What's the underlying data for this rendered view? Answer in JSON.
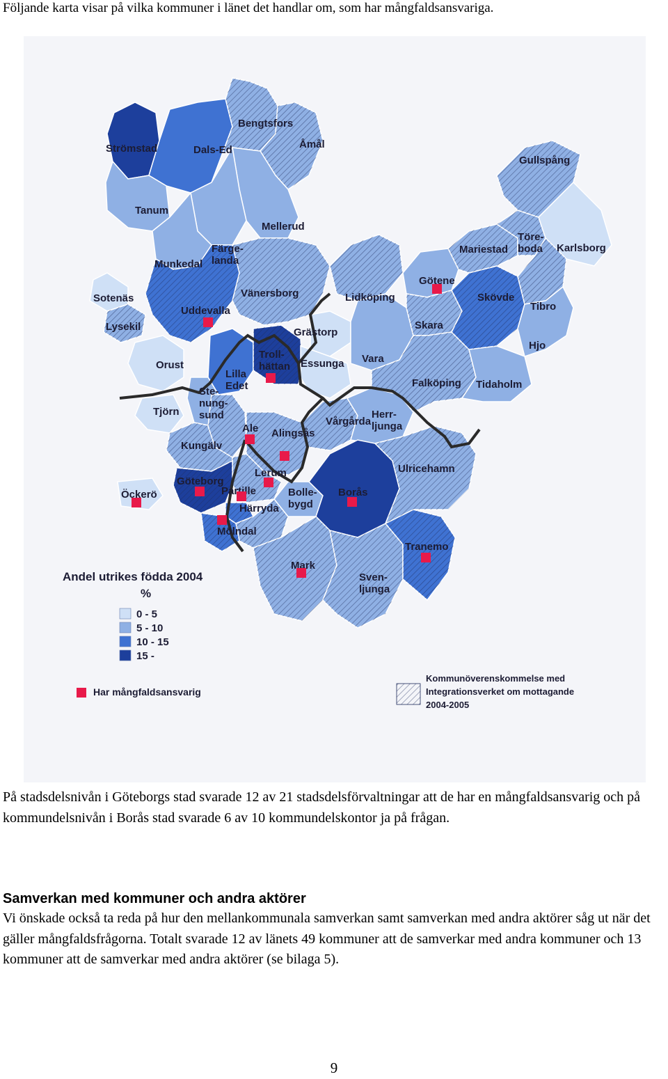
{
  "intro_text": "Följande karta visar på vilka kommuner i länet det handlar om, som har mångfaldsansvariga.",
  "map": {
    "municipalities": [
      {
        "name": "Strömstad",
        "band": "15 -",
        "marker": false,
        "agreement": false
      },
      {
        "name": "Dals-Ed",
        "band": "10 - 15",
        "marker": false,
        "agreement": false
      },
      {
        "name": "Bengtsfors",
        "band": "5 - 10",
        "marker": false,
        "agreement": true
      },
      {
        "name": "Åmål",
        "band": "5 - 10",
        "marker": false,
        "agreement": true
      },
      {
        "name": "Tanum",
        "band": "5 - 10",
        "marker": false,
        "agreement": false
      },
      {
        "name": "Mellerud",
        "band": "5 - 10",
        "marker": false,
        "agreement": false
      },
      {
        "name": "Färge-landa",
        "band": "5 - 10",
        "marker": false,
        "agreement": false
      },
      {
        "name": "Munkedal",
        "band": "5 - 10",
        "marker": false,
        "agreement": false
      },
      {
        "name": "Sotenäs",
        "band": "0 - 5",
        "marker": false,
        "agreement": false
      },
      {
        "name": "Lysekil",
        "band": "5 - 10",
        "marker": false,
        "agreement": true
      },
      {
        "name": "Uddevalla",
        "band": "10 - 15",
        "marker": true,
        "agreement": true
      },
      {
        "name": "Vänersborg",
        "band": "5 - 10",
        "marker": false,
        "agreement": true
      },
      {
        "name": "Orust",
        "band": "0 - 5",
        "marker": false,
        "agreement": false
      },
      {
        "name": "Lilla Edet",
        "band": "10 - 15",
        "marker": false,
        "agreement": false
      },
      {
        "name": "Troll-hättan",
        "band": "15 -",
        "marker": true,
        "agreement": true
      },
      {
        "name": "Grästorp",
        "band": "0 - 5",
        "marker": false,
        "agreement": false
      },
      {
        "name": "Essunga",
        "band": "0 - 5",
        "marker": false,
        "agreement": false
      },
      {
        "name": "Ste-nung-sund",
        "band": "5 - 10",
        "marker": false,
        "agreement": false
      },
      {
        "name": "Tjörn",
        "band": "0 - 5",
        "marker": false,
        "agreement": false
      },
      {
        "name": "Kungälv",
        "band": "5 - 10",
        "marker": false,
        "agreement": true
      },
      {
        "name": "Ale",
        "band": "5 - 10",
        "marker": true,
        "agreement": true
      },
      {
        "name": "Alingsås",
        "band": "5 - 10",
        "marker": true,
        "agreement": true
      },
      {
        "name": "Vårgårda",
        "band": "5 - 10",
        "marker": false,
        "agreement": true
      },
      {
        "name": "Herr-ljunga",
        "band": "5 - 10",
        "marker": false,
        "agreement": false
      },
      {
        "name": "Lerum",
        "band": "5 - 10",
        "marker": true,
        "agreement": true
      },
      {
        "name": "Göteborg",
        "band": "15 -",
        "marker": true,
        "agreement": true
      },
      {
        "name": "Partille",
        "band": "10 - 15",
        "marker": true,
        "agreement": true
      },
      {
        "name": "Härryda",
        "band": "5 - 10",
        "marker": false,
        "agreement": true
      },
      {
        "name": "Bolle-bygd",
        "band": "5 - 10",
        "marker": false,
        "agreement": false
      },
      {
        "name": "Borås",
        "band": "15 -",
        "marker": true,
        "agreement": false
      },
      {
        "name": "Öckerö",
        "band": "0 - 5",
        "marker": true,
        "agreement": false
      },
      {
        "name": "Mölndal",
        "band": "10 - 15",
        "marker": true,
        "agreement": true
      },
      {
        "name": "Mark",
        "band": "5 - 10",
        "marker": true,
        "agreement": true
      },
      {
        "name": "Sven-ljunga",
        "band": "5 - 10",
        "marker": false,
        "agreement": true
      },
      {
        "name": "Tranemo",
        "band": "10 - 15",
        "marker": true,
        "agreement": true
      },
      {
        "name": "Ulricehamn",
        "band": "5 - 10",
        "marker": false,
        "agreement": true
      },
      {
        "name": "Lidköping",
        "band": "5 - 10",
        "marker": false,
        "agreement": true
      },
      {
        "name": "Vara",
        "band": "5 - 10",
        "marker": false,
        "agreement": false
      },
      {
        "name": "Götene",
        "band": "5 - 10",
        "marker": true,
        "agreement": false
      },
      {
        "name": "Skara",
        "band": "5 - 10",
        "marker": false,
        "agreement": true
      },
      {
        "name": "Falköping",
        "band": "5 - 10",
        "marker": false,
        "agreement": true
      },
      {
        "name": "Tidaholm",
        "band": "5 - 10",
        "marker": false,
        "agreement": false
      },
      {
        "name": "Skövde",
        "band": "10 - 15",
        "marker": false,
        "agreement": true
      },
      {
        "name": "Mariestad",
        "band": "5 - 10",
        "marker": false,
        "agreement": true
      },
      {
        "name": "Töre-boda",
        "band": "5 - 10",
        "marker": false,
        "agreement": true
      },
      {
        "name": "Gullspång",
        "band": "5 - 10",
        "marker": false,
        "agreement": true
      },
      {
        "name": "Karlsborg",
        "band": "0 - 5",
        "marker": false,
        "agreement": false
      },
      {
        "name": "Tibro",
        "band": "5 - 10",
        "marker": false,
        "agreement": true
      },
      {
        "name": "Hjo",
        "band": "5 - 10",
        "marker": false,
        "agreement": false
      }
    ],
    "legend": {
      "title": "Andel utrikes födda 2004",
      "unit": "%",
      "bands": [
        {
          "label": "0 - 5",
          "color": "#cfe0f6"
        },
        {
          "label": "5 - 10",
          "color": "#8fb0e4"
        },
        {
          "label": "10 - 15",
          "color": "#3f72d2"
        },
        {
          "label": "15 -",
          "color": "#1d3f9c"
        }
      ],
      "marker_label": "Har mångfaldsansvarig",
      "marker_color": "#e81a4a",
      "agreement_label_1": "Kommunöverenskommelse med",
      "agreement_label_2": "Integrationsverket om mottagande",
      "agreement_label_3": "2004-2005"
    }
  },
  "paragraph_1": "På stadsdelsnivån i Göteborgs stad svarade 12 av 21 stadsdelsförvaltningar att de har en mångfaldsansvarig och på kommundelsnivån i Borås stad svarade 6 av 10 kommundelskontor ja på frågan.",
  "section_heading": "Samverkan med kommuner och andra aktörer",
  "paragraph_2": "Vi önskade också ta reda på hur den mellankommunala samverkan samt samverkan med andra aktörer såg ut när det gäller mångfaldsfrågorna. Totalt svarade 12 av länets 49 kommuner att de samverkar med andra kommuner och 13 kommuner att de samverkar med andra aktörer (se bilaga 5).",
  "page_number": "9"
}
